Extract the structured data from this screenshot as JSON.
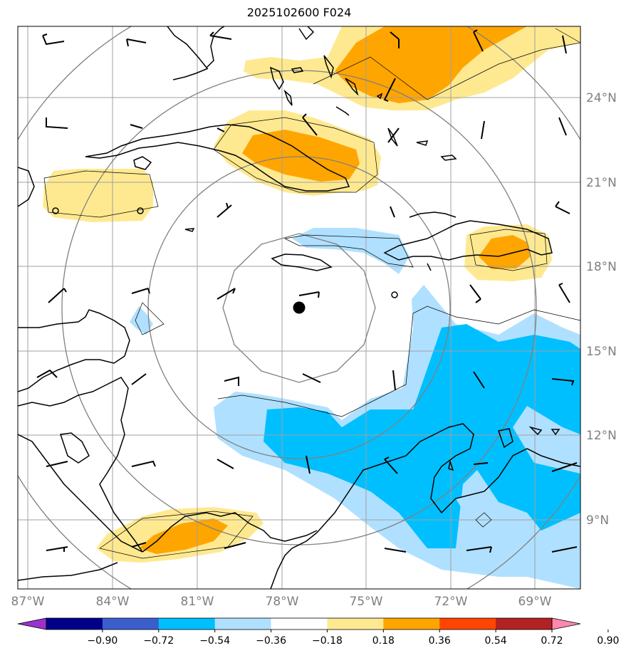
{
  "title": "2025102600 F024",
  "lon_labels": [
    "87°W",
    "84°W",
    "81°W",
    "78°W",
    "75°W",
    "72°W",
    "69°W"
  ],
  "lat_labels": [
    "24°N",
    "21°N",
    "18°N",
    "15°N",
    "12°N",
    "9°N"
  ],
  "colorbar": {
    "ticks": [
      "−0.90",
      "−0.72",
      "−0.54",
      "−0.36",
      "−0.18",
      "0.18",
      "0.36",
      "0.54",
      "0.72",
      "0.90"
    ],
    "colors": [
      "#9932cc",
      "#00008b",
      "#3a5fcd",
      "#00bfff",
      "#b0e0ff",
      "#ffffff",
      "#ffe990",
      "#ffa500",
      "#ff4500",
      "#b22222",
      "#ff88b0"
    ]
  },
  "colors": {
    "pos_light": "#ffe990",
    "pos_mid": "#ffa500",
    "neg_light": "#b0e0ff",
    "neg_mid": "#00bfff",
    "grid": "#a0a0a0",
    "range_ring": "#808080"
  },
  "storm_center": {
    "lon": -77.4,
    "lat": 16.5
  }
}
